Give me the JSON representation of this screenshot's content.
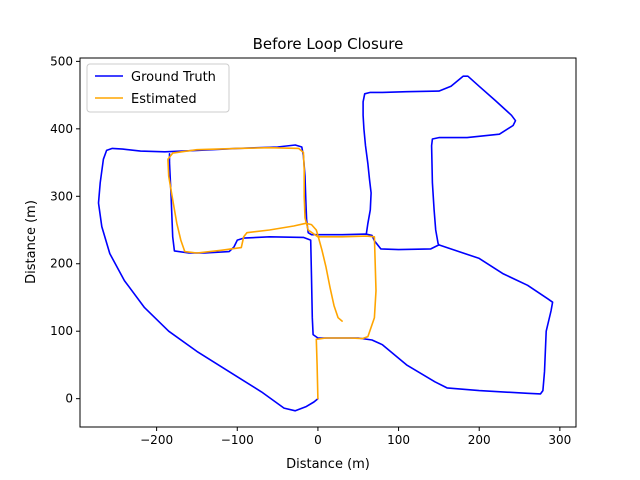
{
  "chart_data": {
    "type": "line",
    "title": "Before Loop Closure",
    "xlabel": "Distance (m)",
    "ylabel": "Distance (m)",
    "xlim": [
      -295,
      320
    ],
    "ylim": [
      -42,
      505
    ],
    "xticks": [
      -200,
      -100,
      0,
      100,
      200,
      300
    ],
    "yticks": [
      0,
      100,
      200,
      300,
      400,
      500
    ],
    "grid": false,
    "legend_position": "top-left",
    "series": [
      {
        "name": "Ground Truth",
        "color": "#0000ff",
        "points": [
          [
            0,
            0
          ],
          [
            -5,
            -5
          ],
          [
            -15,
            -12
          ],
          [
            -28,
            -18
          ],
          [
            -42,
            -14
          ],
          [
            -70,
            10
          ],
          [
            -110,
            40
          ],
          [
            -150,
            70
          ],
          [
            -185,
            100
          ],
          [
            -215,
            135
          ],
          [
            -240,
            175
          ],
          [
            -258,
            215
          ],
          [
            -268,
            255
          ],
          [
            -272,
            290
          ],
          [
            -270,
            320
          ],
          [
            -266,
            355
          ],
          [
            -262,
            368
          ],
          [
            -255,
            371
          ],
          [
            -242,
            370
          ],
          [
            -220,
            367
          ],
          [
            -190,
            366
          ],
          [
            -150,
            368
          ],
          [
            -100,
            371
          ],
          [
            -50,
            373
          ],
          [
            -28,
            376
          ],
          [
            -20,
            373
          ],
          [
            -18,
            360
          ],
          [
            -16,
            330
          ],
          [
            -15,
            295
          ],
          [
            -14,
            265
          ],
          [
            -12,
            246
          ],
          [
            -8,
            243
          ],
          [
            0,
            243
          ],
          [
            30,
            243
          ],
          [
            60,
            244
          ],
          [
            67,
            242
          ],
          [
            70,
            234
          ],
          [
            78,
            222
          ],
          [
            100,
            221
          ],
          [
            140,
            222
          ],
          [
            150,
            228
          ],
          [
            200,
            208
          ],
          [
            230,
            185
          ],
          [
            260,
            168
          ],
          [
            285,
            148
          ],
          [
            291,
            143
          ],
          [
            289,
            130
          ],
          [
            283,
            100
          ],
          [
            281,
            40
          ],
          [
            279,
            12
          ],
          [
            276,
            7
          ],
          [
            260,
            8
          ],
          [
            200,
            12
          ],
          [
            160,
            16
          ],
          [
            145,
            25
          ],
          [
            110,
            50
          ],
          [
            80,
            80
          ],
          [
            67,
            87
          ],
          [
            50,
            90
          ],
          [
            20,
            90
          ],
          [
            0,
            90
          ],
          [
            -6,
            95
          ],
          [
            -7,
            120
          ],
          [
            -8,
            180
          ],
          [
            -9,
            235
          ],
          [
            -18,
            239
          ],
          [
            -60,
            240
          ],
          [
            -92,
            238
          ],
          [
            -100,
            235
          ],
          [
            -104,
            225
          ],
          [
            -110,
            218
          ],
          [
            -140,
            216
          ],
          [
            -160,
            216
          ],
          [
            -178,
            219
          ],
          [
            -180,
            240
          ],
          [
            -182,
            300
          ],
          [
            -184,
            350
          ],
          [
            -184,
            363
          ]
        ]
      },
      {
        "name": "",
        "color": "#0000ff",
        "points": [
          [
            60,
            244
          ],
          [
            62,
            260
          ],
          [
            65,
            280
          ],
          [
            66,
            305
          ],
          [
            64,
            325
          ],
          [
            62,
            348
          ],
          [
            59,
            375
          ],
          [
            57,
            400
          ],
          [
            56,
            420
          ],
          [
            56,
            440
          ],
          [
            58,
            452
          ],
          [
            65,
            454
          ],
          [
            80,
            454
          ],
          [
            110,
            455
          ],
          [
            150,
            456
          ],
          [
            165,
            463
          ],
          [
            180,
            478
          ],
          [
            186,
            478
          ],
          [
            200,
            463
          ],
          [
            220,
            442
          ],
          [
            240,
            420
          ],
          [
            245,
            412
          ],
          [
            242,
            405
          ],
          [
            225,
            392
          ],
          [
            185,
            387
          ],
          [
            150,
            387
          ],
          [
            142,
            385
          ],
          [
            141,
            375
          ],
          [
            142,
            320
          ],
          [
            144,
            280
          ],
          [
            146,
            250
          ],
          [
            149,
            230
          ],
          [
            150,
            228
          ]
        ]
      },
      {
        "name": "Estimated",
        "color": "#ffa500",
        "points": [
          [
            0,
            0
          ],
          [
            -1,
            50
          ],
          [
            -2,
            88
          ],
          [
            10,
            90
          ],
          [
            40,
            90
          ],
          [
            55,
            89
          ],
          [
            62,
            92
          ],
          [
            70,
            120
          ],
          [
            72,
            160
          ],
          [
            71,
            200
          ],
          [
            70,
            240
          ],
          [
            60,
            241
          ],
          [
            30,
            240
          ],
          [
            0,
            240
          ],
          [
            -12,
            250
          ],
          [
            -16,
            268
          ],
          [
            -17,
            300
          ],
          [
            -17,
            340
          ],
          [
            -18,
            365
          ],
          [
            -24,
            371
          ],
          [
            -60,
            372
          ],
          [
            -100,
            371
          ],
          [
            -150,
            369
          ],
          [
            -180,
            364
          ],
          [
            -186,
            355
          ],
          [
            -185,
            330
          ],
          [
            -180,
            295
          ],
          [
            -175,
            260
          ],
          [
            -170,
            235
          ],
          [
            -165,
            218
          ],
          [
            -150,
            216
          ],
          [
            -120,
            220
          ],
          [
            -95,
            224
          ],
          [
            -92,
            240
          ],
          [
            -88,
            246
          ],
          [
            -60,
            250
          ],
          [
            -30,
            256
          ],
          [
            -15,
            260
          ],
          [
            -8,
            258
          ],
          [
            -2,
            250
          ],
          [
            0,
            242
          ],
          [
            5,
            220
          ],
          [
            10,
            195
          ],
          [
            15,
            165
          ],
          [
            20,
            138
          ],
          [
            25,
            120
          ],
          [
            30,
            115
          ]
        ]
      }
    ]
  }
}
